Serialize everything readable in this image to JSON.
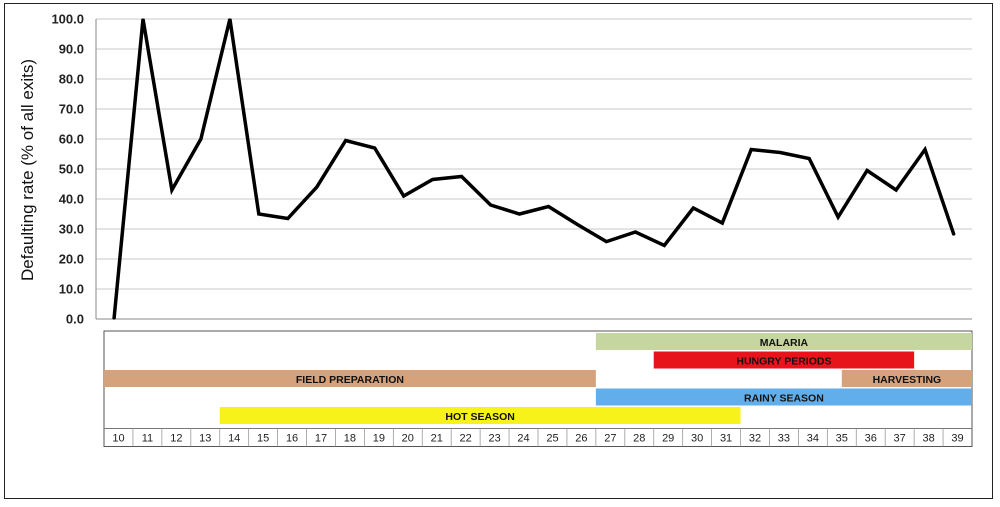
{
  "chart_data": {
    "type": "line",
    "ylabel": "Defaulting rate (% of all exits)",
    "xlabel": "",
    "ylim": [
      0,
      100
    ],
    "yticks": [
      "0.0",
      "10.0",
      "20.0",
      "30.0",
      "40.0",
      "50.0",
      "60.0",
      "70.0",
      "80.0",
      "90.0",
      "100.0"
    ],
    "x": [
      10,
      11,
      12,
      13,
      14,
      15,
      16,
      17,
      18,
      19,
      20,
      21,
      22,
      23,
      24,
      25,
      26,
      27,
      28,
      29,
      30,
      31,
      32,
      33,
      34,
      35,
      36,
      37,
      38,
      39
    ],
    "series": [
      {
        "color": "#000000",
        "values": [
          0,
          100,
          43,
          60,
          100,
          35,
          33.5,
          44,
          59.5,
          57,
          41,
          46.5,
          47.5,
          38,
          35,
          37.5,
          31.5,
          25.8,
          29,
          24.5,
          37,
          32,
          56.5,
          55.5,
          53.5,
          34,
          49.5,
          43,
          56.5,
          28
        ]
      }
    ],
    "grid": true,
    "timeline": {
      "weeks": [
        "10",
        "11",
        "12",
        "13",
        "14",
        "15",
        "16",
        "17",
        "18",
        "19",
        "20",
        "21",
        "22",
        "23",
        "24",
        "25",
        "26",
        "27",
        "28",
        "29",
        "30",
        "31",
        "32",
        "33",
        "34",
        "35",
        "36",
        "37",
        "38",
        "39"
      ],
      "bands": [
        {
          "label": "MALARIA",
          "start": 27,
          "end": 39,
          "color": "#c5d6a0"
        },
        {
          "label": "HUNGRY PERIODS",
          "start": 29,
          "end": 37,
          "color": "#e8141c"
        },
        {
          "label": "FIELD PREPARATION",
          "start": 10,
          "end": 26,
          "color": "#d6a27c"
        },
        {
          "label": "HARVESTING",
          "start": 35.5,
          "end": 39,
          "color": "#d6a27c"
        },
        {
          "label": "RAINY SEASON",
          "start": 27,
          "end": 39,
          "color": "#62aeea"
        },
        {
          "label": "HOT SEASON",
          "start": 14,
          "end": 31,
          "color": "#f7f21a"
        }
      ]
    }
  }
}
